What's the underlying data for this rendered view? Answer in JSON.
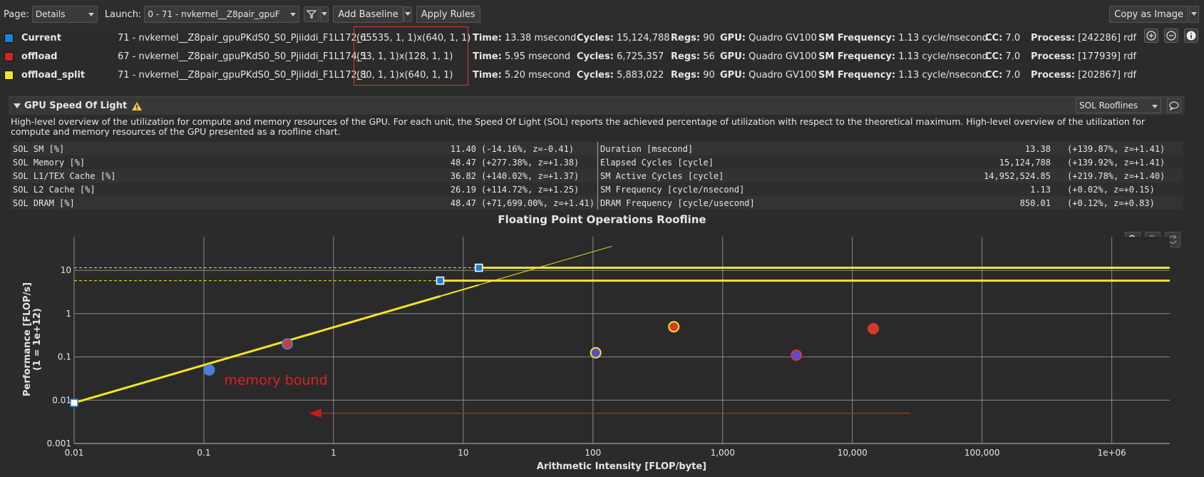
{
  "toolbar": {
    "page_label": "Page:",
    "page_value": "Details",
    "launch_label": "Launch:",
    "launch_value": "0 -    71 - nvkernel__Z8pair_gpuF",
    "add_baseline": "Add Baseline",
    "apply_rules": "Apply Rules",
    "copy_as_image": "Copy as Image"
  },
  "results": [
    {
      "name": "Current",
      "color": "#1e7fd6",
      "kernel": "71 - nvkernel__Z8pair_gpuPKdS0_S0_Pjiiddi_F1L172_1",
      "grid": "(65535, 1, 1)x(640, 1, 1)",
      "time_label": "Time:",
      "time": "13.38 msecond",
      "cycles_label": "Cycles:",
      "cycles": "15,124,788",
      "regs_label": "Regs:",
      "regs": "90",
      "gpu_label": "GPU:",
      "gpu": "Quadro GV100",
      "smf_label": "SM Frequency:",
      "smf": "1.13 cycle/nsecond",
      "cc_label": "CC:",
      "cc": "7.0",
      "proc_label": "Process:",
      "proc": "[242286] rdf"
    },
    {
      "name": "offload",
      "color": "#d42424",
      "kernel": "67 - nvkernel__Z8pair_gpuPKdS0_S0_Pjiiddi_F1L174_1",
      "grid": "(53, 1, 1)x(128, 1, 1)",
      "time_label": "Time:",
      "time": "5.95 msecond",
      "cycles_label": "Cycles:",
      "cycles": "6,725,357",
      "regs_label": "Regs:",
      "regs": "56",
      "gpu_label": "GPU:",
      "gpu": "Quadro GV100",
      "smf_label": "SM Frequency:",
      "smf": "1.13 cycle/nsecond",
      "cc_label": "CC:",
      "cc": "7.0",
      "proc_label": "Process:",
      "proc": "[177939] rdf"
    },
    {
      "name": "offload_split",
      "color": "#f4e420",
      "kernel": "71 - nvkernel__Z8pair_gpuPKdS0_S0_Pjiiddi_F1L172_1",
      "grid": "(80, 1, 1)x(640, 1, 1)",
      "time_label": "Time:",
      "time": "5.20 msecond",
      "cycles_label": "Cycles:",
      "cycles": "5,883,022",
      "regs_label": "Regs:",
      "regs": "90",
      "gpu_label": "GPU:",
      "gpu": "Quadro GV100",
      "smf_label": "SM Frequency:",
      "smf": "1.13 cycle/nsecond",
      "cc_label": "CC:",
      "cc": "7.0",
      "proc_label": "Process:",
      "proc": "[202867] rdf"
    }
  ],
  "section": {
    "title": "GPU Speed Of Light",
    "view": "SOL Rooflines",
    "description": "High-level overview of the utilization for compute and memory resources of the GPU. For each unit, the Speed Of Light (SOL) reports the achieved percentage of utilization with respect to the theoretical maximum. High-level overview of the utilization for compute and memory resources of the GPU presented as a roofline chart."
  },
  "metrics_left": [
    {
      "name": "SOL SM [%]",
      "value": "11.40",
      "delta": "(-14.16%, z=-0.41)"
    },
    {
      "name": "SOL Memory [%]",
      "value": "48.47",
      "delta": "(+277.38%, z=+1.38)"
    },
    {
      "name": "SOL L1/TEX Cache [%]",
      "value": "36.82",
      "delta": "(+140.02%, z=+1.37)"
    },
    {
      "name": "SOL L2 Cache [%]",
      "value": "26.19",
      "delta": "(+114.72%, z=+1.25)"
    },
    {
      "name": "SOL DRAM [%]",
      "value": "48.47",
      "delta": "(+71,699.00%, z=+1.41)"
    }
  ],
  "metrics_right": [
    {
      "name": "Duration [msecond]",
      "value": "13.38",
      "delta": "(+139.87%, z=+1.41)"
    },
    {
      "name": "Elapsed Cycles [cycle]",
      "value": "15,124,788",
      "delta": "(+139.92%, z=+1.41)"
    },
    {
      "name": "SM Active Cycles [cycle]",
      "value": "14,952,524.85",
      "delta": "(+219.78%, z=+1.40)"
    },
    {
      "name": "SM Frequency [cycle/nsecond]",
      "value": "1.13",
      "delta": "(+0.02%, z=+0.15)"
    },
    {
      "name": "DRAM Frequency [cycle/usecond]",
      "value": "850.01",
      "delta": "(+0.12%, z=+0.83)"
    }
  ],
  "chart_data": {
    "type": "scatter",
    "title": "Floating Point Operations Roofline",
    "xlabel": "Arithmetic Intensity [FLOP/byte]",
    "ylabel": "Performance [FLOP/s]",
    "ylabel2": "(1 = 1e+12)",
    "x_scale": "log",
    "y_scale": "log",
    "xlim": [
      0.01,
      2800000
    ],
    "ylim": [
      0.001,
      60
    ],
    "x_ticks": [
      {
        "v": 0.01,
        "label": "0.01"
      },
      {
        "v": 0.1,
        "label": "0.1"
      },
      {
        "v": 1,
        "label": "1"
      },
      {
        "v": 10,
        "label": "10"
      },
      {
        "v": 100,
        "label": "100"
      },
      {
        "v": 1000,
        "label": "1,000"
      },
      {
        "v": 10000,
        "label": "10,000"
      },
      {
        "v": 100000,
        "label": "100,000"
      },
      {
        "v": 1000000,
        "label": "1e+06"
      }
    ],
    "y_ticks": [
      {
        "v": 0.001,
        "label": "0.001"
      },
      {
        "v": 0.01,
        "label": "0.01"
      },
      {
        "v": 0.1,
        "label": "0.1"
      },
      {
        "v": 1,
        "label": "1"
      },
      {
        "v": 10,
        "label": "10"
      }
    ],
    "grid": true,
    "memory_roof": {
      "slope": 0.873,
      "color": "#f4e420"
    },
    "peak_roofs": [
      {
        "y": 11.5,
        "color": "#f4e420"
      },
      {
        "y": 5.8,
        "color": "#f4e420"
      }
    ],
    "roof_markers": [
      {
        "x": 0.01,
        "y": 0.0087
      },
      {
        "x": 6.64,
        "y": 5.8
      },
      {
        "x": 13.2,
        "y": 11.5
      }
    ],
    "points": [
      {
        "x": 0.11,
        "y": 0.05,
        "fill": "#4a7fd6",
        "stroke": "#4a7fd6"
      },
      {
        "x": 0.44,
        "y": 0.2,
        "fill": "#d43a2a",
        "stroke": "#4a7fd6"
      },
      {
        "x": 105,
        "y": 0.125,
        "fill": "#5a4ad6",
        "stroke": "#f4e420"
      },
      {
        "x": 420,
        "y": 0.5,
        "fill": "#d43a2a",
        "stroke": "#f4e420"
      },
      {
        "x": 3700,
        "y": 0.11,
        "fill": "#5a4ad6",
        "stroke": "#d43a2a"
      },
      {
        "x": 14500,
        "y": 0.45,
        "fill": "#d43a2a",
        "stroke": "#d43a2a"
      }
    ],
    "annotation": {
      "text": "memory bound",
      "x": 0.12,
      "y": 0.03,
      "color": "#e02020"
    },
    "arrow": {
      "from_x": 28000,
      "to_x": 0.64,
      "y": 0.005,
      "color": "#c02020"
    }
  }
}
